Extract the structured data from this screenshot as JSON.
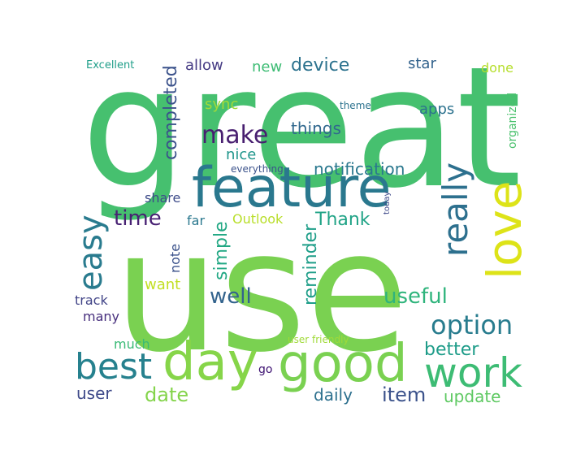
{
  "words": [
    {
      "text": "great",
      "color": "#46c06f",
      "rot": 0
    },
    {
      "text": "use",
      "color": "#7ad151",
      "rot": 0
    },
    {
      "text": "feature",
      "color": "#2a788e",
      "rot": 0
    },
    {
      "text": "love",
      "color": "#dde318",
      "rot": 90
    },
    {
      "text": "good",
      "color": "#7ad151",
      "rot": 0
    },
    {
      "text": "day",
      "color": "#86d549",
      "rot": 0
    },
    {
      "text": "work",
      "color": "#3dbc74",
      "rot": 0
    },
    {
      "text": "best",
      "color": "#26818e",
      "rot": 0
    },
    {
      "text": "really",
      "color": "#2d708e",
      "rot": 90
    },
    {
      "text": "easy",
      "color": "#297b8e",
      "rot": 90
    },
    {
      "text": "option",
      "color": "#287c8e",
      "rot": 0
    },
    {
      "text": "make",
      "color": "#481f70",
      "rot": 0
    },
    {
      "text": "time",
      "color": "#482173",
      "rot": 0
    },
    {
      "text": "well",
      "color": "#33638d",
      "rot": 0
    },
    {
      "text": "useful",
      "color": "#2fb47c",
      "rot": 0
    },
    {
      "text": "date",
      "color": "#84d44b",
      "rot": 0
    },
    {
      "text": "item",
      "color": "#3b528b",
      "rot": 0
    },
    {
      "text": "device",
      "color": "#2c728e",
      "rot": 0
    },
    {
      "text": "completed",
      "color": "#3b528b",
      "rot": 90
    },
    {
      "text": "simple",
      "color": "#22a884",
      "rot": 90
    },
    {
      "text": "reminder",
      "color": "#1f9e89",
      "rot": 90
    },
    {
      "text": "better",
      "color": "#1e9c89",
      "rot": 0
    },
    {
      "text": "notification",
      "color": "#2a788e",
      "rot": 0
    },
    {
      "text": "Thank",
      "color": "#20a386",
      "rot": 0
    },
    {
      "text": "things",
      "color": "#31688e",
      "rot": 0
    },
    {
      "text": "daily",
      "color": "#2d708e",
      "rot": 0
    },
    {
      "text": "update",
      "color": "#5ec962",
      "rot": 0
    },
    {
      "text": "user",
      "color": "#3e4989",
      "rot": 0
    },
    {
      "text": "allow",
      "color": "#443a83",
      "rot": 0
    },
    {
      "text": "new",
      "color": "#3dbc74",
      "rot": 0
    },
    {
      "text": "star",
      "color": "#33638d",
      "rot": 0
    },
    {
      "text": "apps",
      "color": "#2c728e",
      "rot": 0
    },
    {
      "text": "done",
      "color": "#b5de2b",
      "rot": 0
    },
    {
      "text": "sync",
      "color": "#a2da37",
      "rot": 0
    },
    {
      "text": "nice",
      "color": "#1f958b",
      "rot": 0
    },
    {
      "text": "share",
      "color": "#3e4c8a",
      "rot": 0
    },
    {
      "text": "far",
      "color": "#2a788e",
      "rot": 0
    },
    {
      "text": "Outlook",
      "color": "#b8de29",
      "rot": 0
    },
    {
      "text": "want",
      "color": "#c2df23",
      "rot": 0
    },
    {
      "text": "note",
      "color": "#3b528b",
      "rot": 90
    },
    {
      "text": "track",
      "color": "#414487",
      "rot": 0
    },
    {
      "text": "many",
      "color": "#472f7d",
      "rot": 0
    },
    {
      "text": "much",
      "color": "#3aba76",
      "rot": 0
    },
    {
      "text": "go",
      "color": "#3b0f70",
      "rot": 0
    },
    {
      "text": "organized",
      "color": "#4ac16d",
      "rot": 90
    },
    {
      "text": "Excellent",
      "color": "#1f9e89",
      "rot": 0
    },
    {
      "text": "theme",
      "color": "#2c728e",
      "rot": 0
    },
    {
      "text": "everything",
      "color": "#3b528b",
      "rot": 0
    },
    {
      "text": "today",
      "color": "#3e4989",
      "rot": 90
    },
    {
      "text": "user friendly",
      "color": "#a0da39",
      "rot": 0
    }
  ]
}
